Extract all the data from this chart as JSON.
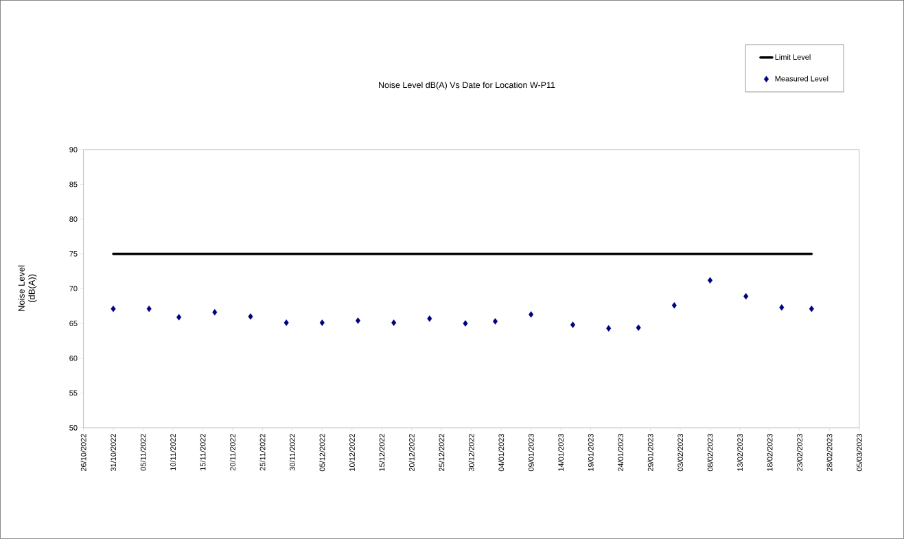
{
  "chart_data": {
    "type": "scatter",
    "title": "Noise Level dB(A) Vs Date for Location W-P11",
    "ylabel": "Noise Level\n(dB(A))",
    "series": [
      {
        "name": "Limit Level",
        "type": "line",
        "color": "#000000",
        "marker": "none",
        "line_style": "solid",
        "x": [
          "2022-10-31",
          "2023-02-25"
        ],
        "values": [
          75,
          75
        ]
      },
      {
        "name": "Measured Level",
        "color": "#000080",
        "marker": "diamond",
        "x": [
          "2022-10-31",
          "2022-11-06",
          "2022-11-11",
          "2022-11-17",
          "2022-11-23",
          "2022-11-29",
          "2022-12-05",
          "2022-12-11",
          "2022-12-17",
          "2022-12-23",
          "2022-12-29",
          "2023-01-03",
          "2023-01-09",
          "2023-01-16",
          "2023-01-22",
          "2023-01-27",
          "2023-02-02",
          "2023-02-08",
          "2023-02-14",
          "2023-02-20",
          "2023-02-25"
        ],
        "values": [
          67.1,
          67.1,
          65.9,
          66.6,
          66.0,
          65.1,
          65.1,
          65.4,
          65.1,
          65.7,
          65.0,
          65.3,
          66.3,
          64.8,
          64.3,
          64.4,
          67.6,
          71.2,
          68.9,
          67.3,
          67.1
        ]
      }
    ],
    "xlim": [
      "2022-10-26",
      "2023-03-05"
    ],
    "xticks": [
      {
        "value": "2022-10-26",
        "label": "26/10/2022"
      },
      {
        "value": "2022-10-31",
        "label": "31/10/2022"
      },
      {
        "value": "2022-11-05",
        "label": "05/11/2022"
      },
      {
        "value": "2022-11-10",
        "label": "10/11/2022"
      },
      {
        "value": "2022-11-15",
        "label": "15/11/2022"
      },
      {
        "value": "2022-11-20",
        "label": "20/11/2022"
      },
      {
        "value": "2022-11-25",
        "label": "25/11/2022"
      },
      {
        "value": "2022-11-30",
        "label": "30/11/2022"
      },
      {
        "value": "2022-12-05",
        "label": "05/12/2022"
      },
      {
        "value": "2022-12-10",
        "label": "10/12/2022"
      },
      {
        "value": "2022-12-15",
        "label": "15/12/2022"
      },
      {
        "value": "2022-12-20",
        "label": "20/12/2022"
      },
      {
        "value": "2022-12-25",
        "label": "25/12/2022"
      },
      {
        "value": "2022-12-30",
        "label": "30/12/2022"
      },
      {
        "value": "2023-01-04",
        "label": "04/01/2023"
      },
      {
        "value": "2023-01-09",
        "label": "09/01/2023"
      },
      {
        "value": "2023-01-14",
        "label": "14/01/2023"
      },
      {
        "value": "2023-01-19",
        "label": "19/01/2023"
      },
      {
        "value": "2023-01-24",
        "label": "24/01/2023"
      },
      {
        "value": "2023-01-29",
        "label": "29/01/2023"
      },
      {
        "value": "2023-02-03",
        "label": "03/02/2023"
      },
      {
        "value": "2023-02-08",
        "label": "08/02/2023"
      },
      {
        "value": "2023-02-13",
        "label": "13/02/2023"
      },
      {
        "value": "2023-02-18",
        "label": "18/02/2023"
      },
      {
        "value": "2023-02-23",
        "label": "23/02/2023"
      },
      {
        "value": "2023-02-28",
        "label": "28/02/2023"
      },
      {
        "value": "2023-03-05",
        "label": "05/03/2023"
      }
    ],
    "ylim": [
      50,
      90
    ],
    "yticks": [
      50,
      55,
      60,
      65,
      70,
      75,
      80,
      85,
      90
    ],
    "grid": false,
    "legend": "top right"
  }
}
